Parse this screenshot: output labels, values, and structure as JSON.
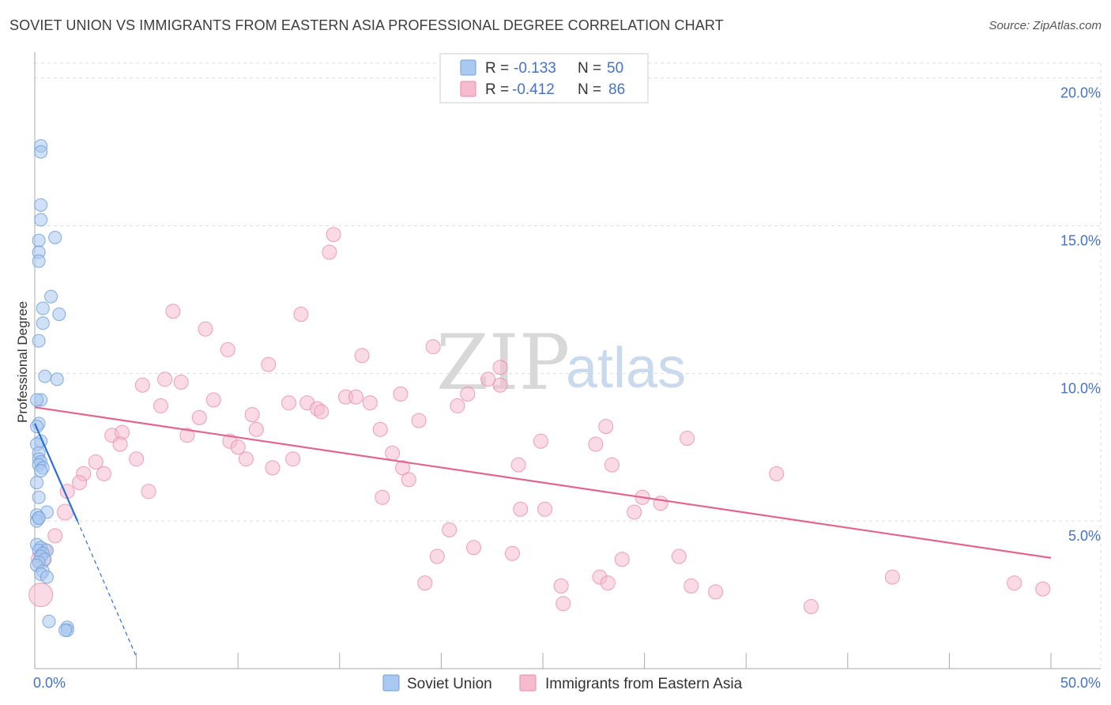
{
  "title": "SOVIET UNION VS IMMIGRANTS FROM EASTERN ASIA PROFESSIONAL DEGREE CORRELATION CHART",
  "source": "Source: ZipAtlas.com",
  "watermark": {
    "zip": "ZIP",
    "atlas": "atlas"
  },
  "colors": {
    "soviet_fill": "#aac8f0",
    "soviet_stroke": "#6f9fd8",
    "soviet_line": "#2a6fd6",
    "asia_fill": "#f6bccd",
    "asia_stroke": "#e88aa8",
    "asia_line": "#e06690",
    "grid": "#dddddd",
    "tick_text": "#4472c4"
  },
  "chart_data": {
    "type": "scatter",
    "title": "SOVIET UNION VS IMMIGRANTS FROM EASTERN ASIA PROFESSIONAL DEGREE CORRELATION CHART",
    "ylabel": "Professional Degree",
    "xlabel": "",
    "xlim": [
      0,
      50
    ],
    "ylim": [
      0,
      20.5
    ],
    "x_tick_labels": [
      "0.0%",
      "50.0%"
    ],
    "y_ticks": [
      5,
      10,
      15,
      20
    ],
    "y_tick_labels": [
      "5.0%",
      "10.0%",
      "15.0%",
      "20.0%"
    ],
    "legend": [
      {
        "series": "Soviet Union",
        "r_label": "R =",
        "r_value": "-0.133",
        "n_label": "N =",
        "n_value": "50"
      },
      {
        "series": "Immigrants from Eastern Asia",
        "r_label": "R =",
        "r_value": "-0.412",
        "n_label": "N =",
        "n_value": "86"
      }
    ],
    "series": [
      {
        "name": "Soviet Union",
        "trend": {
          "x": [
            0.0,
            2.1
          ],
          "y": [
            8.3,
            5.0
          ]
        },
        "trend_dashed": {
          "x": [
            2.1,
            5.0
          ],
          "y": [
            5.0,
            0.4
          ]
        },
        "points": [
          [
            0.3,
            17.7
          ],
          [
            0.3,
            17.5
          ],
          [
            0.3,
            15.7
          ],
          [
            0.3,
            15.2
          ],
          [
            0.2,
            14.5
          ],
          [
            0.2,
            14.1
          ],
          [
            0.2,
            13.8
          ],
          [
            1.0,
            14.6
          ],
          [
            0.8,
            12.6
          ],
          [
            0.4,
            12.2
          ],
          [
            1.2,
            12.0
          ],
          [
            0.4,
            11.7
          ],
          [
            0.2,
            11.1
          ],
          [
            0.5,
            9.9
          ],
          [
            1.1,
            9.8
          ],
          [
            0.3,
            9.1
          ],
          [
            0.1,
            9.1
          ],
          [
            0.2,
            8.3
          ],
          [
            0.1,
            8.2
          ],
          [
            0.3,
            7.7
          ],
          [
            0.1,
            7.6
          ],
          [
            0.2,
            7.3
          ],
          [
            0.2,
            7.1
          ],
          [
            0.3,
            7.0
          ],
          [
            0.2,
            6.9
          ],
          [
            0.4,
            6.8
          ],
          [
            0.3,
            6.7
          ],
          [
            0.1,
            6.3
          ],
          [
            0.2,
            5.8
          ],
          [
            0.6,
            5.3
          ],
          [
            0.1,
            5.2
          ],
          [
            0.2,
            5.1
          ],
          [
            0.1,
            5.0
          ],
          [
            0.2,
            5.1
          ],
          [
            0.1,
            4.2
          ],
          [
            0.3,
            4.1
          ],
          [
            0.2,
            4.0
          ],
          [
            0.6,
            4.0
          ],
          [
            0.4,
            3.9
          ],
          [
            0.3,
            3.8
          ],
          [
            0.5,
            3.7
          ],
          [
            0.2,
            3.6
          ],
          [
            0.1,
            3.5
          ],
          [
            0.4,
            3.3
          ],
          [
            0.3,
            3.2
          ],
          [
            0.6,
            3.1
          ],
          [
            0.7,
            1.6
          ],
          [
            1.6,
            1.4
          ],
          [
            1.6,
            1.3
          ],
          [
            1.5,
            1.3
          ]
        ]
      },
      {
        "name": "Immigrants from Eastern Asia",
        "trend": {
          "x": [
            0.0,
            50.0
          ],
          "y": [
            8.85,
            3.75
          ]
        },
        "points": [
          [
            14.7,
            14.7
          ],
          [
            14.5,
            14.1
          ],
          [
            6.8,
            12.1
          ],
          [
            13.1,
            12.0
          ],
          [
            8.4,
            11.5
          ],
          [
            9.5,
            10.8
          ],
          [
            16.1,
            10.6
          ],
          [
            19.6,
            10.9
          ],
          [
            11.5,
            10.3
          ],
          [
            22.9,
            10.2
          ],
          [
            22.3,
            9.8
          ],
          [
            22.9,
            9.6
          ],
          [
            6.4,
            9.8
          ],
          [
            7.2,
            9.7
          ],
          [
            5.3,
            9.6
          ],
          [
            18.0,
            9.3
          ],
          [
            21.3,
            9.3
          ],
          [
            15.3,
            9.2
          ],
          [
            15.8,
            9.2
          ],
          [
            8.8,
            9.1
          ],
          [
            12.5,
            9.0
          ],
          [
            16.5,
            9.0
          ],
          [
            13.4,
            9.0
          ],
          [
            13.9,
            8.8
          ],
          [
            14.1,
            8.7
          ],
          [
            6.2,
            8.9
          ],
          [
            20.8,
            8.9
          ],
          [
            10.7,
            8.6
          ],
          [
            8.1,
            8.5
          ],
          [
            18.9,
            8.4
          ],
          [
            10.9,
            8.1
          ],
          [
            17.0,
            8.1
          ],
          [
            28.1,
            8.2
          ],
          [
            3.8,
            7.9
          ],
          [
            4.3,
            8.0
          ],
          [
            7.5,
            7.9
          ],
          [
            9.6,
            7.7
          ],
          [
            24.9,
            7.7
          ],
          [
            32.1,
            7.8
          ],
          [
            27.6,
            7.6
          ],
          [
            4.2,
            7.6
          ],
          [
            10.0,
            7.5
          ],
          [
            3.0,
            7.0
          ],
          [
            5.0,
            7.1
          ],
          [
            17.6,
            7.3
          ],
          [
            10.4,
            7.1
          ],
          [
            12.7,
            7.1
          ],
          [
            11.7,
            6.8
          ],
          [
            18.1,
            6.8
          ],
          [
            23.8,
            6.9
          ],
          [
            28.4,
            6.9
          ],
          [
            36.5,
            6.6
          ],
          [
            2.4,
            6.6
          ],
          [
            3.4,
            6.6
          ],
          [
            1.6,
            6.0
          ],
          [
            18.4,
            6.4
          ],
          [
            5.6,
            6.0
          ],
          [
            2.2,
            6.3
          ],
          [
            17.1,
            5.8
          ],
          [
            29.9,
            5.8
          ],
          [
            30.8,
            5.6
          ],
          [
            1.5,
            5.3
          ],
          [
            23.9,
            5.4
          ],
          [
            25.1,
            5.4
          ],
          [
            29.5,
            5.3
          ],
          [
            20.4,
            4.7
          ],
          [
            1.0,
            4.5
          ],
          [
            21.6,
            4.1
          ],
          [
            0.5,
            4.0
          ],
          [
            0.3,
            3.7
          ],
          [
            19.8,
            3.8
          ],
          [
            23.5,
            3.9
          ],
          [
            28.9,
            3.7
          ],
          [
            31.7,
            3.8
          ],
          [
            27.8,
            3.1
          ],
          [
            19.2,
            2.9
          ],
          [
            25.9,
            2.8
          ],
          [
            28.2,
            2.9
          ],
          [
            32.3,
            2.8
          ],
          [
            33.5,
            2.6
          ],
          [
            42.2,
            3.1
          ],
          [
            48.2,
            2.9
          ],
          [
            49.6,
            2.7
          ],
          [
            0.3,
            2.5
          ],
          [
            26.0,
            2.2
          ],
          [
            38.2,
            2.1
          ]
        ]
      }
    ],
    "bottom_legend": [
      "Soviet Union",
      "Immigrants from Eastern Asia"
    ]
  }
}
